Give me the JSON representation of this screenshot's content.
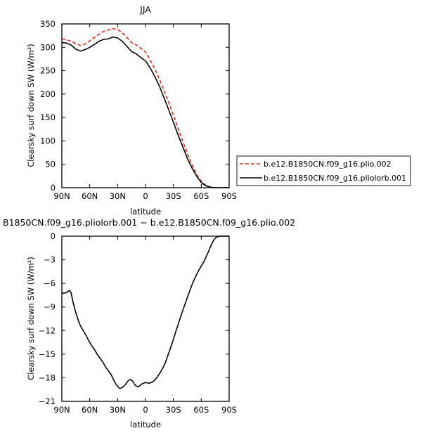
{
  "chart_data": [
    {
      "type": "line",
      "title": "JJA",
      "xlabel": "latitude",
      "ylabel": "Clearsky surf down SW (W/m²)",
      "ylim": [
        0,
        350
      ],
      "yticks": [
        0,
        50,
        100,
        150,
        200,
        250,
        300,
        350
      ],
      "xlim": [
        90,
        -90
      ],
      "xticks": [
        90,
        60,
        30,
        0,
        -30,
        -60,
        -90
      ],
      "xticklabels": [
        "90N",
        "60N",
        "30N",
        "0",
        "30S",
        "60S",
        "90S"
      ],
      "legend": "right",
      "series": [
        {
          "name": "b.e12.B1850CN.f09_g16.plio.002",
          "color": "#e8231a",
          "dash": "dashed",
          "x": [
            90,
            85,
            80,
            75,
            70,
            65,
            60,
            55,
            50,
            45,
            40,
            35,
            30,
            25,
            20,
            15,
            10,
            5,
            0,
            -5,
            -10,
            -15,
            -20,
            -25,
            -30,
            -35,
            -40,
            -45,
            -50,
            -55,
            -60,
            -65,
            -70,
            -75,
            -80,
            -85,
            -90
          ],
          "values": [
            318,
            316,
            313,
            308,
            304,
            307,
            314,
            321,
            328,
            334,
            337,
            340,
            338,
            331,
            321,
            310,
            305,
            298,
            290,
            273,
            254,
            232,
            207,
            182,
            155,
            127,
            100,
            73,
            49,
            28,
            14,
            5,
            1,
            0,
            0,
            0,
            0
          ]
        },
        {
          "name": "b.e12.B1850CN.f09_g16.pliolorb.001",
          "color": "#000000",
          "dash": "solid",
          "x": [
            90,
            85,
            80,
            75,
            70,
            65,
            60,
            55,
            50,
            45,
            40,
            35,
            30,
            25,
            20,
            15,
            10,
            5,
            0,
            -5,
            -10,
            -15,
            -20,
            -25,
            -30,
            -35,
            -40,
            -45,
            -50,
            -55,
            -60,
            -65,
            -70,
            -75,
            -80,
            -85,
            -90
          ],
          "values": [
            310,
            309,
            305,
            296,
            292,
            295,
            300,
            306,
            313,
            317,
            318,
            322,
            320,
            313,
            302,
            291,
            286,
            278,
            271,
            256,
            238,
            217,
            192,
            166,
            140,
            113,
            88,
            63,
            42,
            25,
            11,
            4,
            1,
            0,
            0,
            0,
            0
          ]
        }
      ]
    },
    {
      "type": "line",
      "title": "B1850CN.f09_g16.pliolorb.001 − b.e12.B1850CN.f09_g16.plio.002",
      "xlabel": "latitude",
      "ylabel": "Clearsky surf down SW (W/m²)",
      "ylim": [
        -21,
        0
      ],
      "yticks": [
        -21,
        -18,
        -15,
        -12,
        -9,
        -6,
        -3,
        0
      ],
      "xlim": [
        90,
        -90
      ],
      "xticks": [
        90,
        60,
        30,
        0,
        -30,
        -60,
        -90
      ],
      "xticklabels": [
        "90N",
        "60N",
        "30N",
        "0",
        "30S",
        "60S",
        "90S"
      ],
      "series": [
        {
          "color": "#000000",
          "dash": "solid",
          "x": [
            90,
            88,
            86,
            84,
            82,
            80,
            78,
            75,
            72,
            70,
            67,
            64,
            61,
            58,
            55,
            52,
            49,
            46,
            43,
            40,
            37,
            34,
            32,
            30,
            28,
            26,
            24,
            22,
            20,
            18,
            16,
            14,
            12,
            10,
            8,
            6,
            4,
            2,
            0,
            -2,
            -4,
            -6,
            -8,
            -10,
            -12,
            -15,
            -18,
            -21,
            -24,
            -27,
            -30,
            -33,
            -36,
            -39,
            -42,
            -45,
            -48,
            -51,
            -54,
            -57,
            -60,
            -63,
            -66,
            -68,
            -70,
            -72,
            -74,
            -76,
            -78,
            -80,
            -82,
            -84,
            -86,
            -88,
            -90
          ],
          "values": [
            -7.2,
            -7.25,
            -7.2,
            -7.1,
            -6.9,
            -7.2,
            -8.4,
            -9.7,
            -10.8,
            -11.4,
            -12.0,
            -12.6,
            -13.3,
            -13.9,
            -14.4,
            -15.0,
            -15.5,
            -16.0,
            -16.6,
            -17.1,
            -17.6,
            -18.3,
            -18.8,
            -19.1,
            -19.35,
            -19.3,
            -19.15,
            -18.9,
            -18.6,
            -18.3,
            -18.2,
            -18.4,
            -18.8,
            -19.05,
            -19.15,
            -19.0,
            -18.8,
            -18.7,
            -18.6,
            -18.65,
            -18.7,
            -18.6,
            -18.5,
            -18.3,
            -18.0,
            -17.5,
            -16.9,
            -16.2,
            -15.2,
            -14.2,
            -13.1,
            -12.0,
            -10.9,
            -9.8,
            -8.8,
            -7.8,
            -6.8,
            -5.9,
            -5.1,
            -4.4,
            -3.8,
            -3.2,
            -2.4,
            -1.9,
            -1.3,
            -0.8,
            -0.4,
            -0.15,
            -0.05,
            0,
            0,
            0,
            0,
            0,
            0
          ]
        }
      ]
    }
  ]
}
